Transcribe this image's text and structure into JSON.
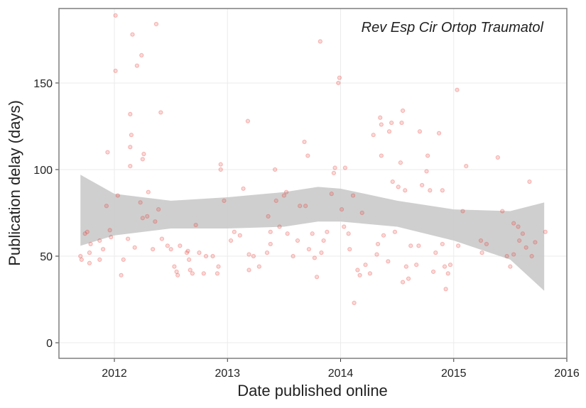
{
  "chart_data": {
    "type": "scatter",
    "annotation": "Rev Esp Cir Ortop Traumatol",
    "xlabel": "Date published online",
    "ylabel": "Publication delay (days)",
    "xlim": [
      2011.51,
      2016.0
    ],
    "xticks": [
      2012,
      2013,
      2014,
      2015,
      2016
    ],
    "ylim": [
      -9,
      193
    ],
    "yticks": [
      0,
      50,
      100,
      150
    ],
    "grid": true,
    "color": "#e8423a",
    "x": [
      2011.7,
      2011.71,
      2011.74,
      2011.76,
      2011.78,
      2011.78,
      2011.79,
      2011.87,
      2011.87,
      2011.9,
      2011.93,
      2011.94,
      2011.96,
      2011.97,
      2012.01,
      2012.01,
      2012.03,
      2012.06,
      2012.08,
      2012.12,
      2012.14,
      2012.15,
      2012.14,
      2012.14,
      2012.16,
      2012.18,
      2012.2,
      2012.23,
      2012.24,
      2012.25,
      2012.26,
      2012.25,
      2012.29,
      2012.3,
      2012.34,
      2012.36,
      2012.37,
      2012.39,
      2012.41,
      2012.42,
      2012.47,
      2012.5,
      2012.53,
      2012.55,
      2012.56,
      2012.58,
      2012.64,
      2012.65,
      2012.66,
      2012.67,
      2012.69,
      2012.72,
      2012.75,
      2012.79,
      2012.81,
      2012.87,
      2012.91,
      2012.92,
      2012.94,
      2012.94,
      2012.97,
      2013.03,
      2013.06,
      2013.11,
      2013.14,
      2013.18,
      2013.19,
      2013.19,
      2013.23,
      2013.28,
      2013.35,
      2013.36,
      2013.38,
      2013.38,
      2013.42,
      2013.43,
      2013.46,
      2013.5,
      2013.52,
      2013.53,
      2013.58,
      2013.62,
      2013.64,
      2013.68,
      2013.69,
      2013.71,
      2013.72,
      2013.75,
      2013.77,
      2013.79,
      2013.82,
      2013.83,
      2013.85,
      2013.88,
      2013.92,
      2013.94,
      2013.95,
      2013.98,
      2013.99,
      2014.01,
      2014.03,
      2014.04,
      2014.07,
      2014.08,
      2014.11,
      2014.12,
      2014.15,
      2014.17,
      2014.19,
      2014.22,
      2014.26,
      2014.29,
      2014.32,
      2014.33,
      2014.35,
      2014.36,
      2014.36,
      2014.38,
      2014.42,
      2014.43,
      2014.45,
      2014.46,
      2014.48,
      2014.51,
      2014.53,
      2014.54,
      2014.55,
      2014.55,
      2014.57,
      2014.58,
      2014.6,
      2014.62,
      2014.67,
      2014.69,
      2014.7,
      2014.72,
      2014.76,
      2014.77,
      2014.79,
      2014.82,
      2014.84,
      2014.87,
      2014.9,
      2014.9,
      2014.92,
      2014.93,
      2014.95,
      2014.97,
      2015.03,
      2015.04,
      2015.08,
      2015.11,
      2015.24,
      2015.25,
      2015.29,
      2015.39,
      2015.43,
      2015.47,
      2015.5,
      2015.53,
      2015.53,
      2015.57,
      2015.58,
      2015.61,
      2015.64,
      2015.67,
      2015.69,
      2015.72,
      2015.81
    ],
    "values": [
      50,
      48,
      63,
      64,
      46,
      52,
      57,
      48,
      59,
      54,
      79,
      110,
      65,
      61,
      189,
      157,
      85,
      39,
      48,
      60,
      132,
      120,
      113,
      102,
      178,
      55,
      160,
      81,
      166,
      106,
      109,
      72,
      73,
      87,
      54,
      70,
      184,
      77,
      133,
      60,
      56,
      54,
      44,
      41,
      39,
      56,
      52,
      53,
      48,
      42,
      40,
      68,
      52,
      40,
      50,
      50,
      40,
      44,
      100,
      103,
      82,
      59,
      64,
      62,
      89,
      128,
      51,
      42,
      50,
      44,
      52,
      73,
      57,
      64,
      100,
      82,
      67,
      85,
      87,
      63,
      50,
      59,
      79,
      116,
      79,
      108,
      54,
      63,
      49,
      38,
      174,
      52,
      59,
      64,
      86,
      98,
      101,
      150,
      153,
      77,
      67,
      101,
      63,
      54,
      85,
      23,
      42,
      39,
      75,
      45,
      40,
      120,
      51,
      57,
      130,
      126,
      108,
      62,
      47,
      122,
      127,
      93,
      64,
      90,
      104,
      127,
      134,
      35,
      88,
      44,
      37,
      56,
      45,
      56,
      122,
      91,
      99,
      108,
      88,
      41,
      52,
      121,
      88,
      57,
      44,
      31,
      40,
      45,
      146,
      56,
      76,
      102,
      59,
      52,
      57,
      107,
      76,
      50,
      44,
      51,
      69,
      67,
      59,
      63,
      55,
      93,
      50,
      58,
      64
    ],
    "band": {
      "color": "#cccccc",
      "x": [
        2011.7,
        2012.0,
        2012.5,
        2013.0,
        2013.5,
        2013.8,
        2014.0,
        2014.5,
        2015.0,
        2015.5,
        2015.8
      ],
      "lower": [
        56,
        62,
        66,
        66,
        67,
        70,
        70,
        67,
        59,
        48,
        30
      ],
      "upper": [
        97,
        86,
        82,
        84,
        87,
        90,
        89,
        82,
        77,
        76,
        81
      ]
    }
  }
}
